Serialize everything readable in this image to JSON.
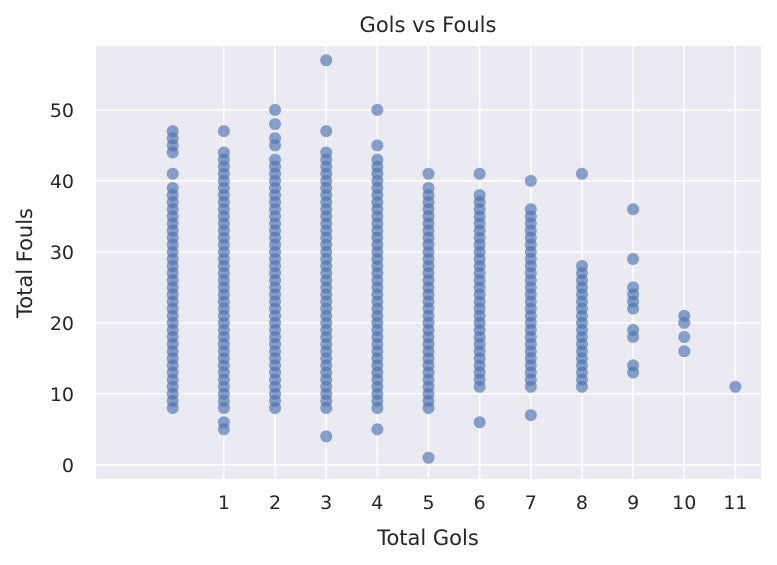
{
  "chart_data": {
    "type": "scatter",
    "title": "Gols vs Fouls",
    "xlabel": "Total Gols",
    "ylabel": "Total Fouls",
    "xlim": [
      -1.5,
      11.5
    ],
    "ylim": [
      -2,
      59
    ],
    "xticks": [
      1,
      2,
      3,
      4,
      5,
      6,
      7,
      8,
      9,
      10,
      11
    ],
    "yticks": [
      0,
      10,
      20,
      30,
      40,
      50
    ],
    "grid": true,
    "point_color": "#4c72b0",
    "background_color": "#eaeaf2",
    "series": [
      {
        "columns": [
          {
            "x": 0,
            "min": 8,
            "max": 39,
            "extra": [
              41,
              44,
              45,
              46,
              47
            ]
          },
          {
            "x": 1,
            "min": 8,
            "max": 44,
            "extra": [
              5,
              6,
              47
            ]
          },
          {
            "x": 2,
            "min": 8,
            "max": 43,
            "extra": [
              45,
              46,
              48,
              50
            ]
          },
          {
            "x": 3,
            "min": 8,
            "max": 43,
            "extra": [
              4,
              44,
              47,
              57
            ]
          },
          {
            "x": 4,
            "min": 8,
            "max": 42,
            "extra": [
              5,
              43,
              45,
              50
            ]
          },
          {
            "x": 5,
            "min": 8,
            "max": 39,
            "extra": [
              1,
              41
            ]
          },
          {
            "x": 6,
            "min": 11,
            "max": 38,
            "extra": [
              6,
              41
            ]
          },
          {
            "x": 7,
            "min": 11,
            "max": 36,
            "extra": [
              7,
              40
            ]
          },
          {
            "x": 8,
            "min": 11,
            "max": 28,
            "extra": [
              41
            ]
          },
          {
            "x": 9,
            "min": null,
            "max": null,
            "extra": [
              13,
              14,
              18,
              19,
              22,
              23,
              24,
              25,
              29,
              36
            ]
          },
          {
            "x": 10,
            "min": null,
            "max": null,
            "extra": [
              16,
              18,
              20,
              21
            ]
          },
          {
            "x": 11,
            "min": null,
            "max": null,
            "extra": [
              11
            ]
          }
        ]
      }
    ]
  }
}
